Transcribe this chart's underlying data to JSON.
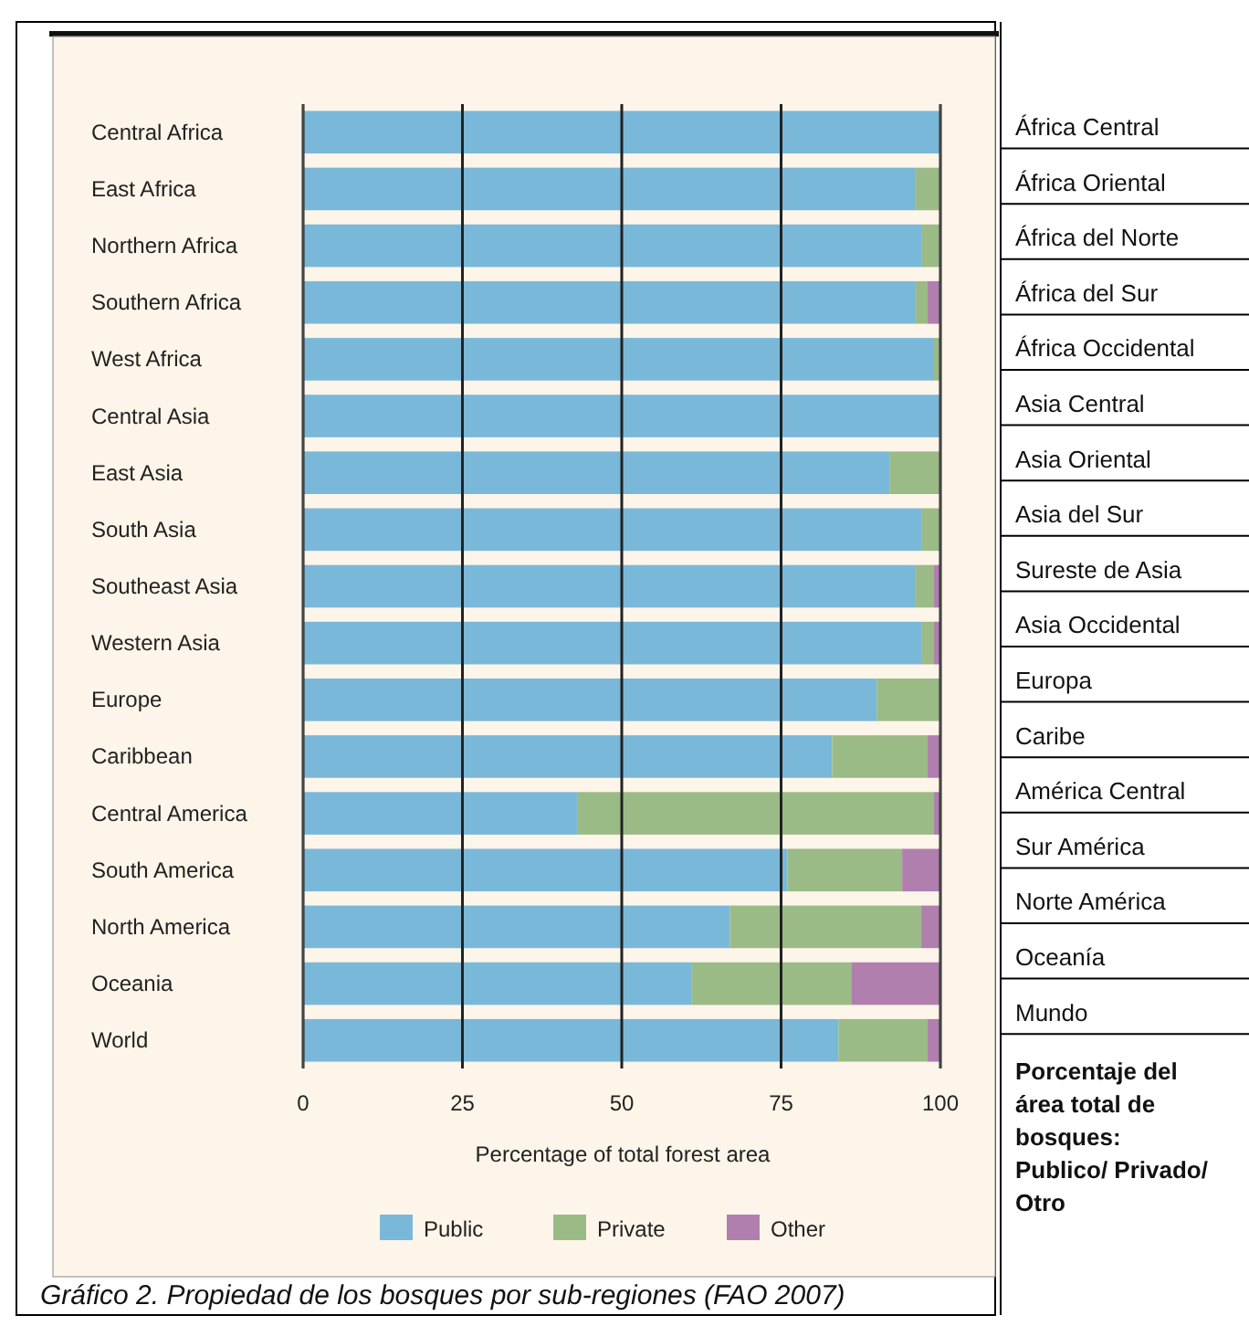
{
  "chart_data": {
    "type": "bar",
    "orientation": "horizontal",
    "stacked": true,
    "categories": [
      "Central Africa",
      "East Africa",
      "Northern Africa",
      "Southern Africa",
      "West Africa",
      "Central Asia",
      "East Asia",
      "South Asia",
      "Southeast Asia",
      "Western Asia",
      "Europe",
      "Caribbean",
      "Central America",
      "South America",
      "North America",
      "Oceania",
      "World"
    ],
    "series": [
      {
        "name": "Public",
        "color": "#7ab8d9",
        "values": [
          100,
          96,
          97,
          96,
          99,
          100,
          92,
          97,
          96,
          97,
          90,
          83,
          43,
          76,
          67,
          61,
          84
        ]
      },
      {
        "name": "Private",
        "color": "#9bbb86",
        "values": [
          0,
          4,
          3,
          2,
          1,
          0,
          8,
          3,
          3,
          2,
          10,
          15,
          56,
          18,
          30,
          25,
          14
        ]
      },
      {
        "name": "Other",
        "color": "#b07fae",
        "values": [
          0,
          0,
          0,
          2,
          0,
          0,
          0,
          0,
          1,
          1,
          0,
          2,
          1,
          6,
          3,
          14,
          2
        ]
      }
    ],
    "xlim": [
      0,
      100
    ],
    "xticks": [
      0,
      25,
      50,
      75,
      100
    ],
    "xlabel": "Percentage of total forest area",
    "grid": "x",
    "legend": "bottom",
    "annotations": [
      "África Central",
      "África Oriental",
      "África del Norte",
      "África del Sur",
      "África Occidental",
      "Asia Central",
      "Asia Oriental",
      "Asia del Sur",
      "Sureste de Asia",
      "Asia Occidental",
      "Europa",
      "Caribe",
      "América Central",
      "Sur América",
      "Norte América",
      "Oceanía",
      "Mundo",
      "Porcentaje del área total de bosques:",
      "Publico/ Privado/ Otro",
      "Gráfico 2. Propiedad de los bosques por sub-regiones (FAO 2007)"
    ]
  }
}
